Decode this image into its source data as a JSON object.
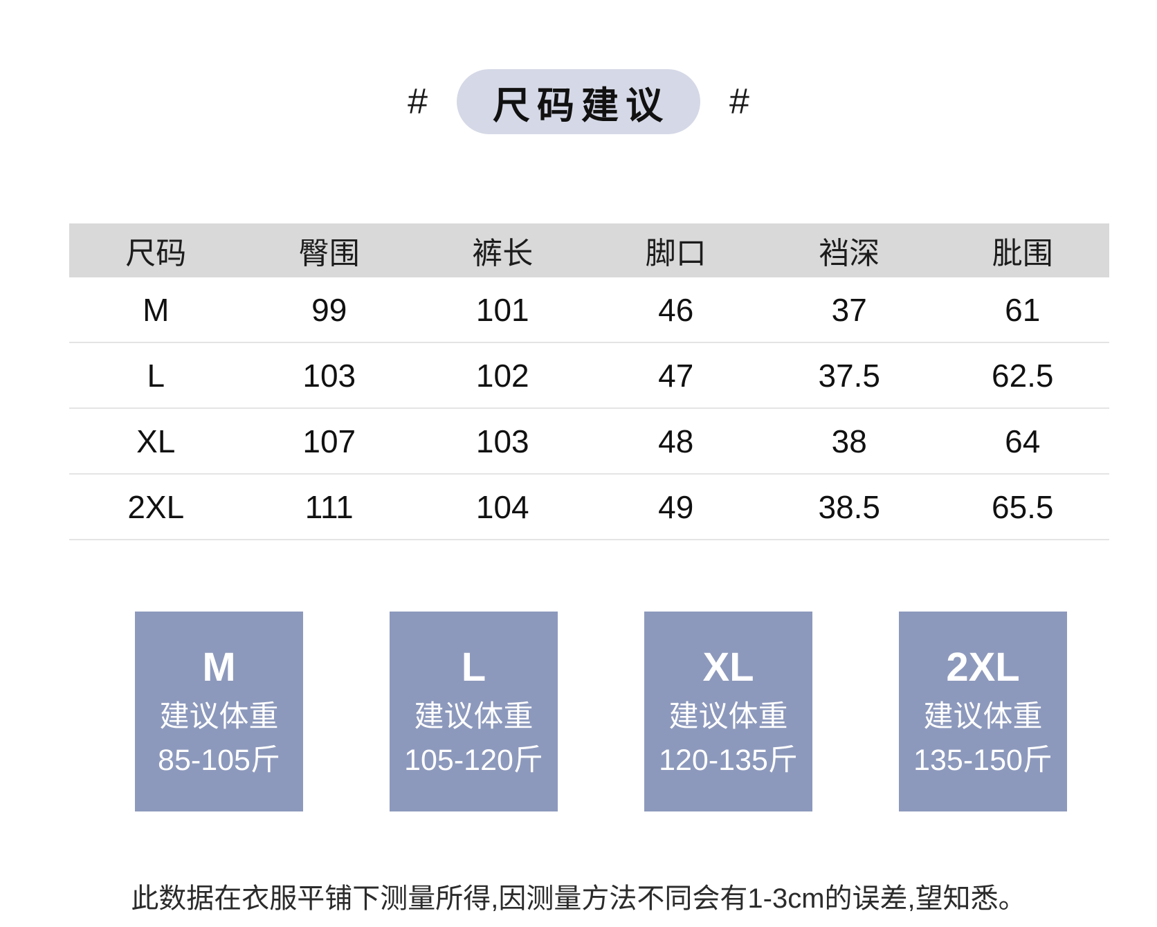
{
  "header": {
    "hash_left": "#",
    "hash_right": "#",
    "title": "尺码建议"
  },
  "table": {
    "columns": [
      "尺码",
      "臀围",
      "裤长",
      "脚口",
      "裆深",
      "肶围"
    ],
    "rows": [
      {
        "size": "M",
        "values": [
          "99",
          "101",
          "46",
          "37",
          "61"
        ]
      },
      {
        "size": "L",
        "values": [
          "103",
          "102",
          "47",
          "37.5",
          "62.5"
        ]
      },
      {
        "size": "XL",
        "values": [
          "107",
          "103",
          "48",
          "38",
          "64"
        ]
      },
      {
        "size": "2XL",
        "values": [
          "111",
          "104",
          "49",
          "38.5",
          "65.5"
        ]
      }
    ]
  },
  "cards": [
    {
      "size": "M",
      "label": "建议体重",
      "range": "85-105斤"
    },
    {
      "size": "L",
      "label": "建议体重",
      "range": "105-120斤"
    },
    {
      "size": "XL",
      "label": "建议体重",
      "range": "120-135斤"
    },
    {
      "size": "2XL",
      "label": "建议体重",
      "range": "135-150斤"
    }
  ],
  "footer_note": "此数据在衣服平铺下测量所得,因测量方法不同会有1-3cm的误差,望知悉。",
  "colors": {
    "card_bg": "#8d99bc",
    "pill_bg": "#d5d8e6",
    "table_header_bg": "#d9d9d9",
    "row_divider": "#e4e4e4",
    "text": "#1a1a1a"
  },
  "chart_data": {
    "type": "table",
    "title": "尺码建议",
    "columns": [
      "尺码",
      "臀围",
      "裤长",
      "脚口",
      "裆深",
      "肶围"
    ],
    "rows": [
      [
        "M",
        99,
        101,
        46,
        37,
        61
      ],
      [
        "L",
        103,
        102,
        47,
        37.5,
        62.5
      ],
      [
        "XL",
        107,
        103,
        48,
        38,
        64
      ],
      [
        "2XL",
        111,
        104,
        49,
        38.5,
        65.5
      ]
    ],
    "weight_recommendations": [
      {
        "size": "M",
        "weight_range_jin": "85-105"
      },
      {
        "size": "L",
        "weight_range_jin": "105-120"
      },
      {
        "size": "XL",
        "weight_range_jin": "120-135"
      },
      {
        "size": "2XL",
        "weight_range_jin": "135-150"
      }
    ],
    "note": "此数据在衣服平铺下测量所得,因测量方法不同会有1-3cm的误差,望知悉。"
  }
}
